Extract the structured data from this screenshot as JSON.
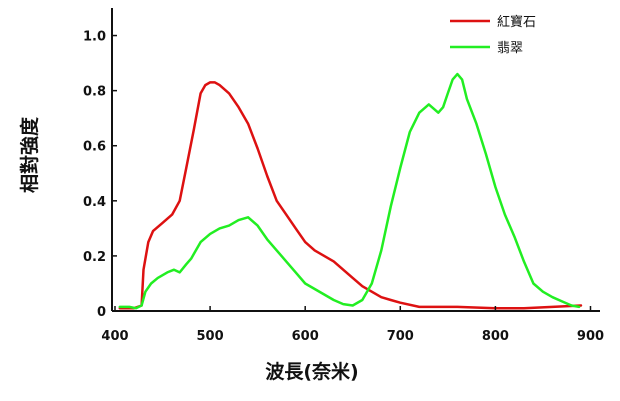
{
  "chart_data": {
    "type": "line",
    "xlabel": "波長(奈米)",
    "ylabel": "相對強度",
    "xlim": [
      400,
      910
    ],
    "ylim": [
      0,
      1.1
    ],
    "x_ticks": [
      400,
      500,
      600,
      700,
      800,
      900
    ],
    "y_ticks": [
      0,
      0.2,
      0.4,
      0.6,
      0.8,
      1.0
    ],
    "y_tick_labels": [
      "0",
      "0.2",
      "0.4",
      "0.6",
      "0.8",
      "1.0"
    ],
    "grid": false,
    "legend_position": "top-right",
    "series": [
      {
        "name": "紅寶石",
        "color": "#dd1111",
        "points": [
          [
            405,
            0.01
          ],
          [
            420,
            0.01
          ],
          [
            428,
            0.02
          ],
          [
            430,
            0.15
          ],
          [
            435,
            0.25
          ],
          [
            440,
            0.29
          ],
          [
            450,
            0.32
          ],
          [
            460,
            0.35
          ],
          [
            468,
            0.4
          ],
          [
            475,
            0.52
          ],
          [
            483,
            0.66
          ],
          [
            490,
            0.79
          ],
          [
            495,
            0.82
          ],
          [
            500,
            0.83
          ],
          [
            505,
            0.83
          ],
          [
            510,
            0.82
          ],
          [
            520,
            0.79
          ],
          [
            530,
            0.74
          ],
          [
            540,
            0.68
          ],
          [
            550,
            0.59
          ],
          [
            560,
            0.49
          ],
          [
            570,
            0.4
          ],
          [
            580,
            0.35
          ],
          [
            590,
            0.3
          ],
          [
            600,
            0.25
          ],
          [
            610,
            0.22
          ],
          [
            620,
            0.2
          ],
          [
            630,
            0.18
          ],
          [
            640,
            0.15
          ],
          [
            650,
            0.12
          ],
          [
            660,
            0.09
          ],
          [
            670,
            0.07
          ],
          [
            680,
            0.05
          ],
          [
            690,
            0.04
          ],
          [
            700,
            0.03
          ],
          [
            720,
            0.015
          ],
          [
            760,
            0.015
          ],
          [
            800,
            0.01
          ],
          [
            830,
            0.01
          ],
          [
            860,
            0.015
          ],
          [
            890,
            0.02
          ]
        ]
      },
      {
        "name": "翡翠",
        "color": "#22ee22",
        "points": [
          [
            405,
            0.015
          ],
          [
            415,
            0.015
          ],
          [
            422,
            0.01
          ],
          [
            428,
            0.02
          ],
          [
            432,
            0.07
          ],
          [
            438,
            0.1
          ],
          [
            445,
            0.12
          ],
          [
            455,
            0.14
          ],
          [
            462,
            0.15
          ],
          [
            468,
            0.14
          ],
          [
            475,
            0.17
          ],
          [
            480,
            0.19
          ],
          [
            490,
            0.25
          ],
          [
            500,
            0.28
          ],
          [
            510,
            0.3
          ],
          [
            520,
            0.31
          ],
          [
            530,
            0.33
          ],
          [
            540,
            0.34
          ],
          [
            550,
            0.31
          ],
          [
            560,
            0.26
          ],
          [
            570,
            0.22
          ],
          [
            580,
            0.18
          ],
          [
            590,
            0.14
          ],
          [
            600,
            0.1
          ],
          [
            610,
            0.08
          ],
          [
            620,
            0.06
          ],
          [
            630,
            0.04
          ],
          [
            640,
            0.025
          ],
          [
            650,
            0.02
          ],
          [
            660,
            0.04
          ],
          [
            670,
            0.1
          ],
          [
            680,
            0.22
          ],
          [
            690,
            0.38
          ],
          [
            700,
            0.52
          ],
          [
            710,
            0.65
          ],
          [
            720,
            0.72
          ],
          [
            730,
            0.75
          ],
          [
            740,
            0.72
          ],
          [
            745,
            0.74
          ],
          [
            750,
            0.79
          ],
          [
            755,
            0.84
          ],
          [
            760,
            0.86
          ],
          [
            765,
            0.84
          ],
          [
            770,
            0.77
          ],
          [
            780,
            0.68
          ],
          [
            790,
            0.57
          ],
          [
            800,
            0.45
          ],
          [
            810,
            0.35
          ],
          [
            820,
            0.27
          ],
          [
            830,
            0.18
          ],
          [
            840,
            0.1
          ],
          [
            850,
            0.07
          ],
          [
            860,
            0.05
          ],
          [
            870,
            0.035
          ],
          [
            880,
            0.02
          ],
          [
            888,
            0.015
          ]
        ]
      }
    ]
  }
}
